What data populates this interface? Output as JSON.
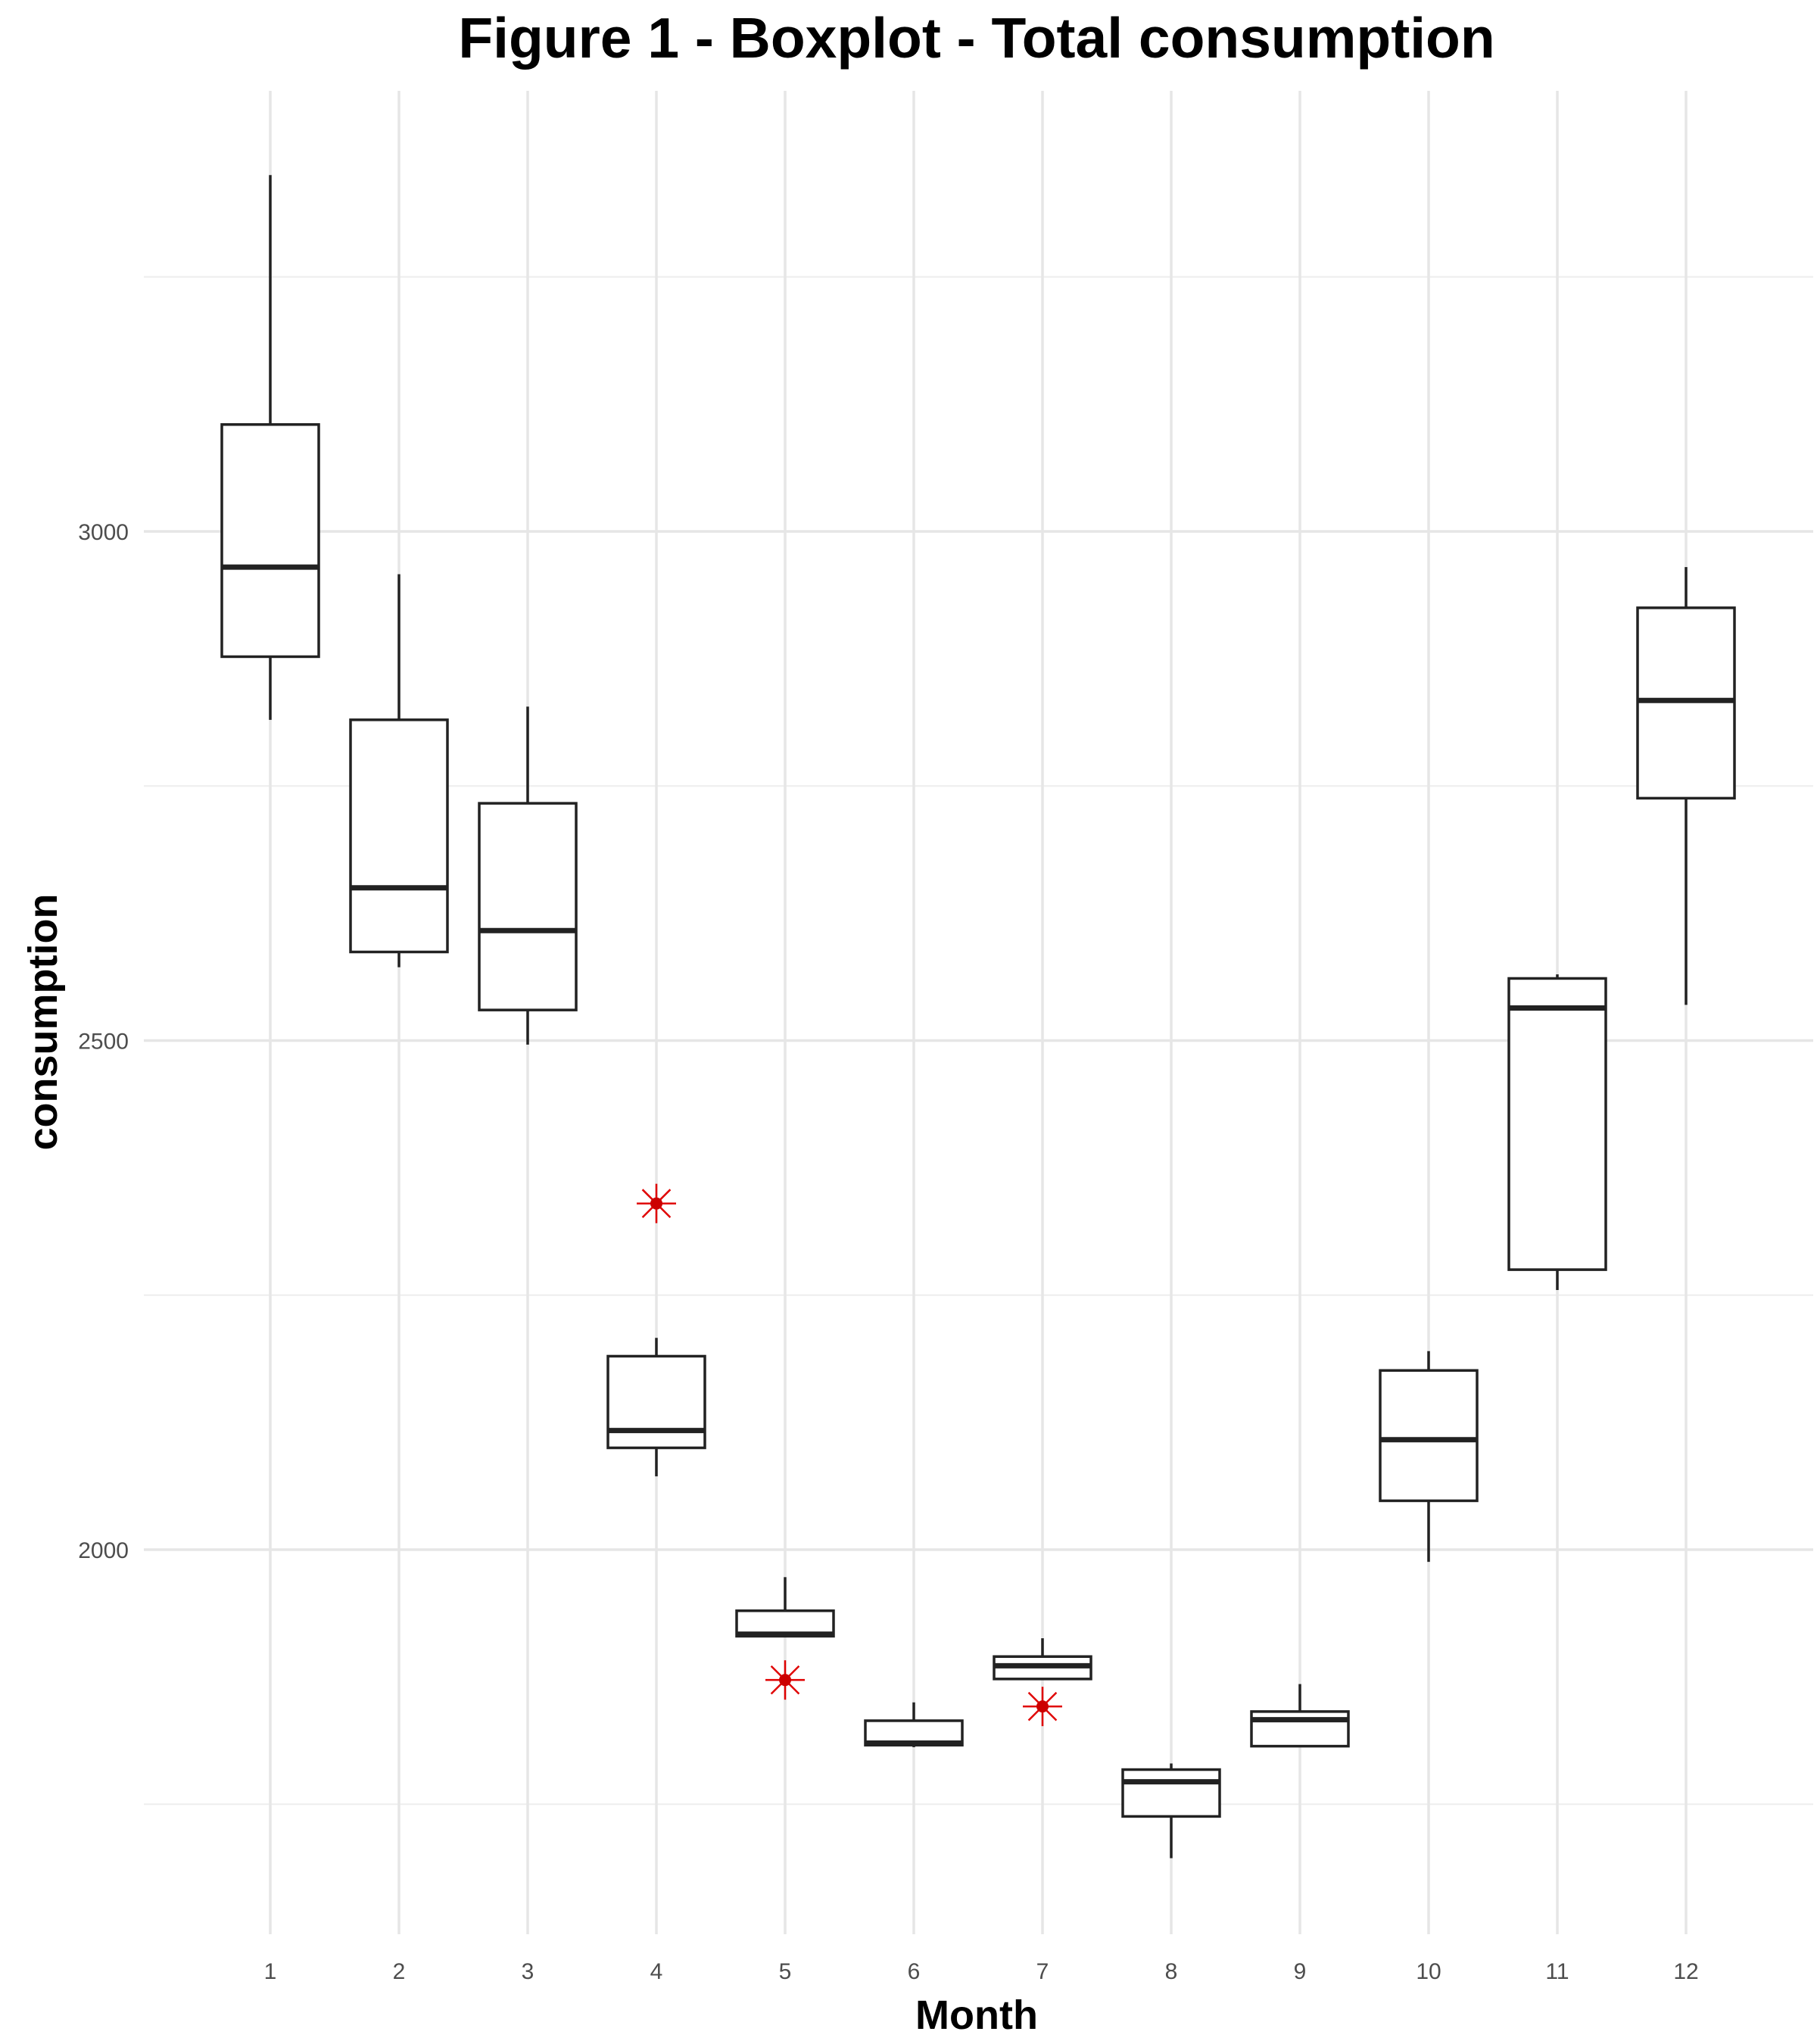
{
  "chart_data": {
    "type": "boxplot",
    "title": "Figure 1 - Boxplot - Total consumption",
    "xlabel": "Month",
    "ylabel": "consumption",
    "categories": [
      "1",
      "2",
      "3",
      "4",
      "5",
      "6",
      "7",
      "8",
      "9",
      "10",
      "11",
      "12"
    ],
    "ylim": [
      1570,
      3440
    ],
    "y_major_ticks": [
      2000,
      2500,
      3000
    ],
    "y_minor_ticks": [
      1750,
      2250,
      2750,
      3250
    ],
    "grid": true,
    "boxes": [
      {
        "x": "1",
        "min": 2815,
        "q1": 2877,
        "median": 2965,
        "q3": 3105,
        "max": 3350
      },
      {
        "x": "2",
        "min": 2572,
        "q1": 2587,
        "median": 2650,
        "q3": 2815,
        "max": 2958
      },
      {
        "x": "3",
        "min": 2496,
        "q1": 2530,
        "median": 2608,
        "q3": 2733,
        "max": 2828
      },
      {
        "x": "4",
        "min": 2072,
        "q1": 2100,
        "median": 2117,
        "q3": 2190,
        "max": 2208
      },
      {
        "x": "5",
        "min": 1914,
        "q1": 1915,
        "median": 1917,
        "q3": 1940,
        "max": 1973
      },
      {
        "x": "6",
        "min": 1806,
        "q1": 1808,
        "median": 1810,
        "q3": 1832,
        "max": 1850
      },
      {
        "x": "7",
        "min": 1872,
        "q1": 1873,
        "median": 1886,
        "q3": 1895,
        "max": 1913
      },
      {
        "x": "8",
        "min": 1697,
        "q1": 1738,
        "median": 1772,
        "q3": 1784,
        "max": 1790
      },
      {
        "x": "9",
        "min": 1806,
        "q1": 1807,
        "median": 1833,
        "q3": 1841,
        "max": 1868
      },
      {
        "x": "10",
        "min": 1988,
        "q1": 2048,
        "median": 2108,
        "q3": 2176,
        "max": 2195
      },
      {
        "x": "11",
        "min": 2255,
        "q1": 2275,
        "median": 2532,
        "q3": 2561,
        "max": 2565
      },
      {
        "x": "12",
        "min": 2535,
        "q1": 2738,
        "median": 2834,
        "q3": 2925,
        "max": 2965
      }
    ],
    "extra_points": [
      {
        "x": "4",
        "value": 2340,
        "color": "#cc0000",
        "marker": "asterisk"
      },
      {
        "x": "5",
        "value": 1872,
        "color": "#cc0000",
        "marker": "asterisk"
      },
      {
        "x": "7",
        "value": 1846,
        "color": "#cc0000",
        "marker": "asterisk"
      }
    ],
    "colors": {
      "box": "#222222",
      "mean_marker": "#cc0000",
      "grid": "#e6e6e6"
    }
  }
}
